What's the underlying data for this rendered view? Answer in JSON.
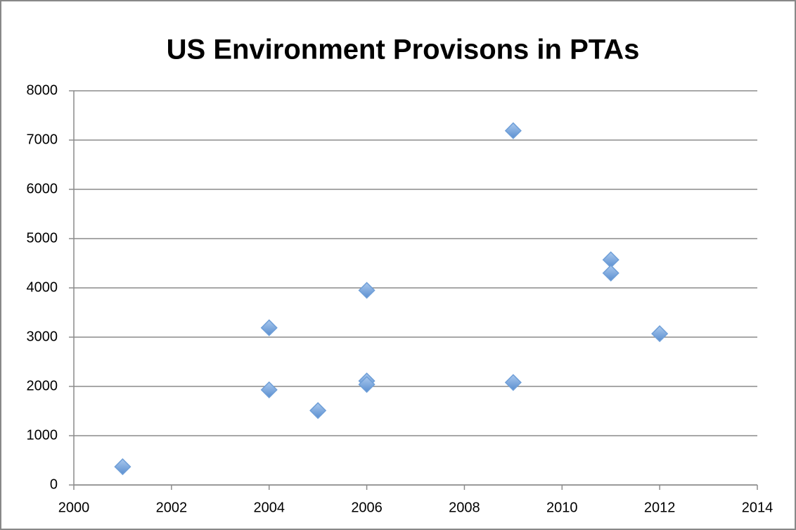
{
  "chart_data": {
    "type": "scatter",
    "title": "US Environment Provisons in PTAs",
    "x": [
      2001,
      2004,
      2004,
      2005,
      2006,
      2006,
      2006,
      2009,
      2009,
      2011,
      2011,
      2012
    ],
    "values": [
      370,
      3190,
      1930,
      1510,
      3950,
      2110,
      2040,
      7190,
      2080,
      4570,
      4300,
      3070
    ],
    "color": "#6f9fd8",
    "xlim": [
      2000,
      2014
    ],
    "xticks": [
      2000,
      2002,
      2004,
      2006,
      2008,
      2010,
      2012,
      2014
    ],
    "ylim": [
      0,
      8000
    ],
    "yticks": [
      0,
      1000,
      2000,
      3000,
      4000,
      5000,
      6000,
      7000,
      8000
    ],
    "grid": true
  }
}
